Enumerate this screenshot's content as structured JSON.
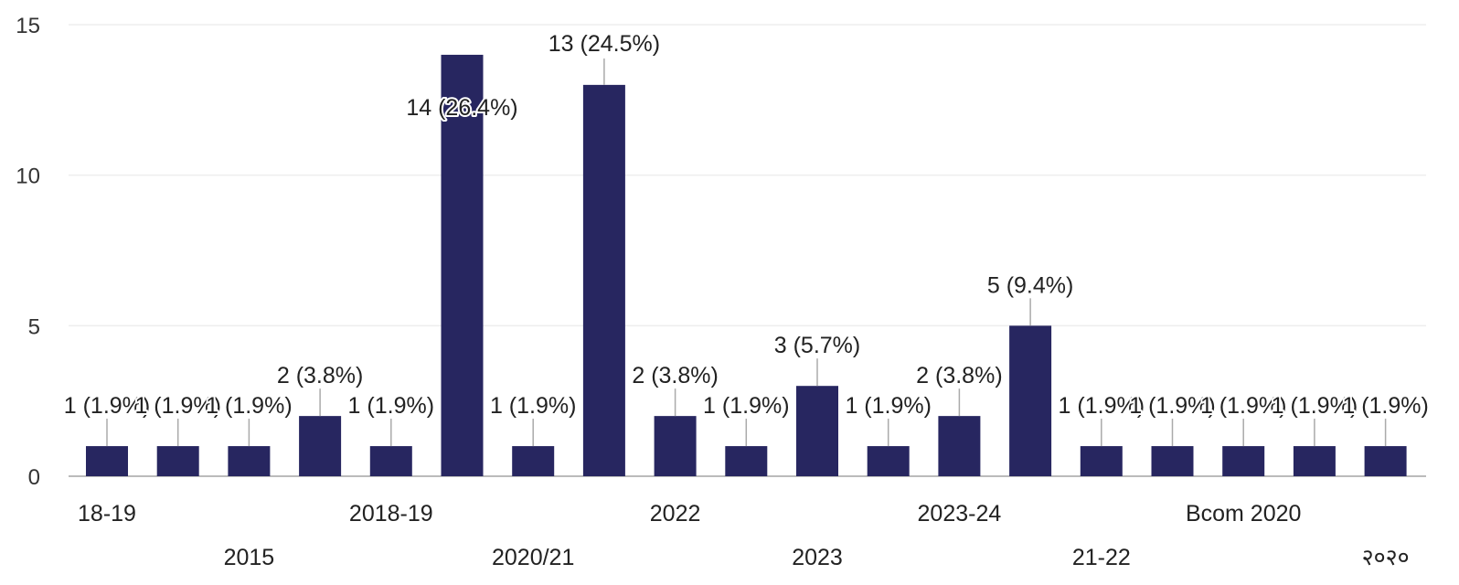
{
  "chart_data": {
    "type": "bar",
    "categories": [
      "18-19",
      "",
      "2015",
      "",
      "2018-19",
      "",
      "2020/21",
      "",
      "2022",
      "",
      "2023",
      "",
      "2023-24",
      "",
      "21-22",
      "",
      "Bcom 2020",
      "",
      "२०२०"
    ],
    "values": [
      1,
      1,
      1,
      2,
      1,
      14,
      1,
      13,
      2,
      1,
      3,
      1,
      2,
      5,
      1,
      1,
      1,
      1,
      1
    ],
    "data_labels": [
      "1 (1.9%)",
      "1 (1.9%)",
      "1 (1.9%)",
      "2 (3.8%)",
      "1 (1.9%)",
      "14 (26.4%)",
      "1 (1.9%)",
      "13 (24.5%)",
      "2 (3.8%)",
      "1 (1.9%)",
      "3 (5.7%)",
      "1 (1.9%)",
      "2 (3.8%)",
      "5 (9.4%)",
      "1 (1.9%)",
      "1 (1.9%)",
      "1 (1.9%)",
      "1 (1.9%)",
      "1 (1.9%)"
    ],
    "ylim": [
      0,
      15
    ],
    "yticks": [
      0,
      5,
      10,
      15
    ],
    "title": "",
    "xlabel": "",
    "ylabel": "",
    "grid": true,
    "colors": {
      "bar": "#272660",
      "grid": "#eeeeee",
      "axis": "#bbbbbb",
      "leader": "#aaaaaa"
    }
  }
}
